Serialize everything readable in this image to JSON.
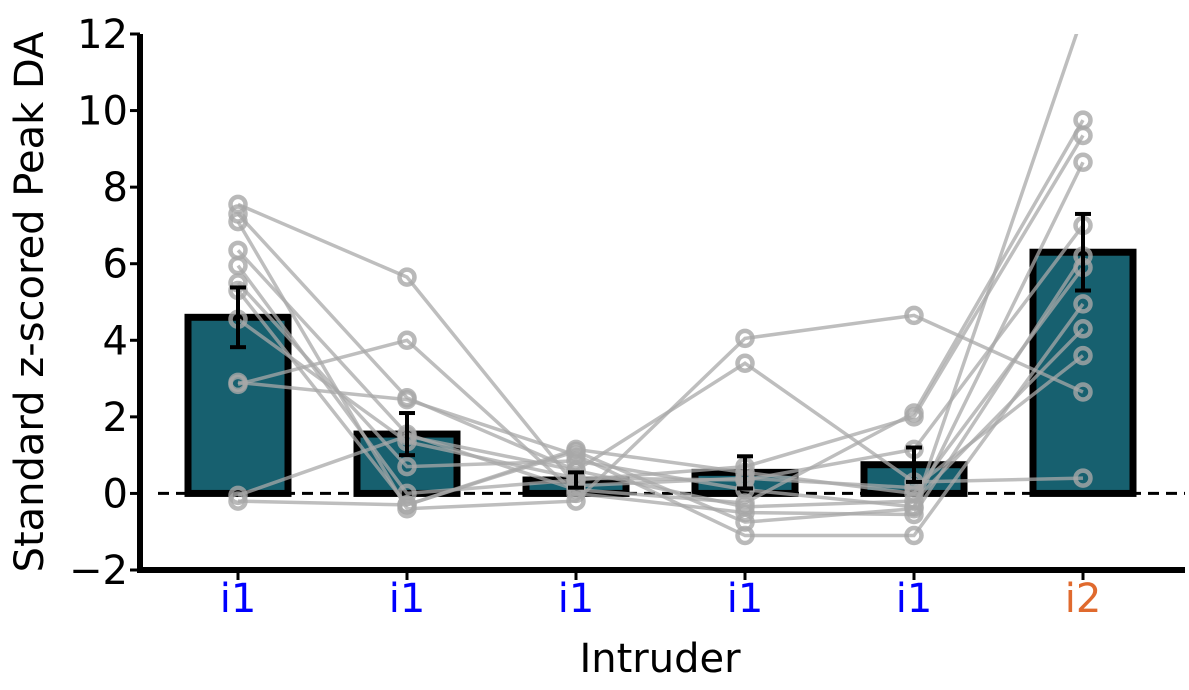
{
  "chart_data": {
    "type": "bar",
    "xlabel": "Intruder",
    "ylabel": "Standard z-scored Peak DA",
    "ylim": [
      -2,
      12
    ],
    "yticks": [
      -2,
      0,
      2,
      4,
      6,
      8,
      10,
      12
    ],
    "ytick_labels": [
      "−2",
      "0",
      "2",
      "4",
      "6",
      "8",
      "10",
      "12"
    ],
    "categories": [
      "i1",
      "i1",
      "i1",
      "i1",
      "i1",
      "i2"
    ],
    "category_colors": [
      "#0000ff",
      "#0000ff",
      "#0000ff",
      "#0000ff",
      "#0000ff",
      "#e06a2e"
    ],
    "values": [
      4.6,
      1.55,
      0.35,
      0.55,
      0.75,
      6.3
    ],
    "errors": [
      0.78,
      0.55,
      0.2,
      0.42,
      0.45,
      1.0
    ],
    "reference_line": 0,
    "bar_color": "#17606f",
    "bar_edge_color": "#000000",
    "subject_color": "#a8a8a8",
    "subjects": [
      [
        7.55,
        5.65,
        0.2,
        0.4,
        0.15,
        3.6
      ],
      [
        7.3,
        2.5,
        0.6,
        3.4,
        0.3,
        0.4
      ],
      [
        7.1,
        -0.4,
        -0.2,
        4.05,
        4.65,
        2.65
      ],
      [
        6.35,
        1.55,
        0.1,
        -0.25,
        2.1,
        9.75
      ],
      [
        5.95,
        0.0,
        0.35,
        0.7,
        2.0,
        9.35
      ],
      [
        5.5,
        0.7,
        0.85,
        0.1,
        -0.35,
        8.65
      ],
      [
        4.55,
        1.35,
        0.4,
        0.35,
        1.15,
        7.0
      ],
      [
        2.85,
        4.0,
        0.0,
        -0.5,
        -0.55,
        6.2
      ],
      [
        2.9,
        2.45,
        1.0,
        -1.1,
        -1.1,
        4.95
      ],
      [
        -0.05,
        1.5,
        0.6,
        -0.35,
        -0.2,
        4.3
      ],
      [
        -0.2,
        -0.3,
        1.1,
        -0.75,
        -0.4,
        12.5
      ],
      [
        5.3,
        -0.3,
        1.15,
        0.55,
        0.0,
        5.9
      ]
    ]
  }
}
